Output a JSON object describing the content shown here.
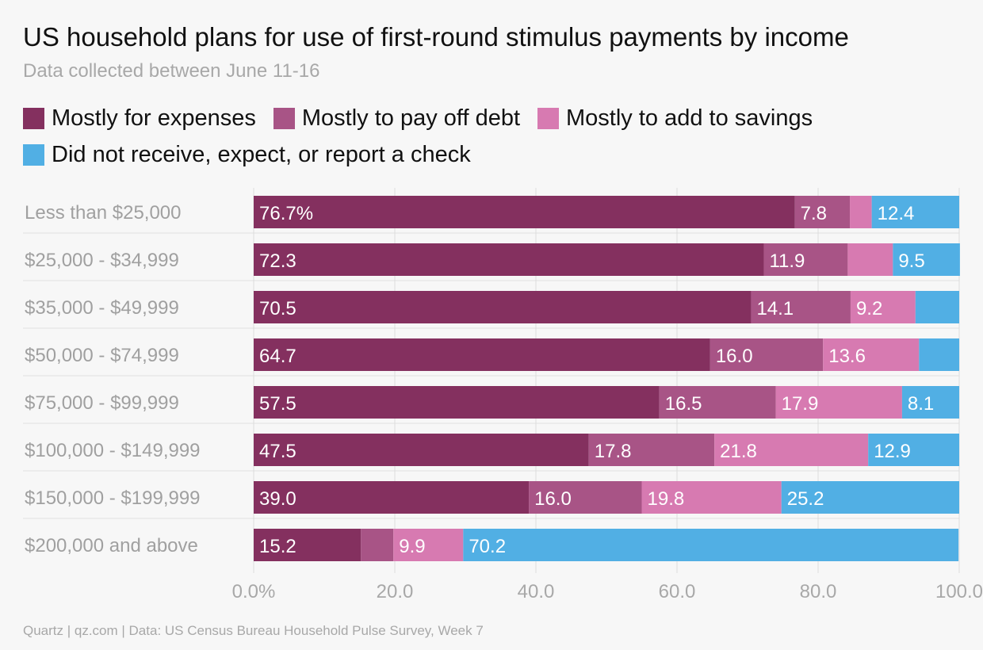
{
  "chart_data": {
    "type": "bar",
    "orientation": "horizontal",
    "stacked": true,
    "title": "US household plans for use of first-round stimulus payments by income",
    "subtitle": "Data collected between June 11-16",
    "source": "Quartz | qz.com | Data: US Census Bureau Household Pulse Survey, Week 7",
    "legend_placement": "top-left",
    "grid": true,
    "xlim": [
      0,
      100
    ],
    "x_ticks": [
      0,
      20,
      40,
      60,
      80,
      100
    ],
    "x_tick_labels": [
      "0.0%",
      "20.0",
      "40.0",
      "60.0",
      "80.0",
      "100.0"
    ],
    "categories": [
      "Less than $25,000",
      "$25,000 - $34,999",
      "$35,000 - $49,999",
      "$50,000 - $74,999",
      "$75,000 - $99,999",
      "$100,000 - $149,999",
      "$150,000 - $199,999",
      "$200,000 and above"
    ],
    "series": [
      {
        "name": "Mostly for expenses",
        "color": "#84305f",
        "values": [
          76.7,
          72.3,
          70.5,
          64.7,
          57.5,
          47.5,
          39.0,
          15.2
        ],
        "labels": [
          "76.7%",
          "72.3",
          "70.5",
          "64.7",
          "57.5",
          "47.5",
          "39.0",
          "15.2"
        ]
      },
      {
        "name": "Mostly to pay off debt",
        "color": "#a85486",
        "values": [
          7.8,
          11.9,
          14.1,
          16.0,
          16.5,
          17.8,
          16.0,
          4.6
        ],
        "labels": [
          "7.8",
          "11.9",
          "14.1",
          "16.0",
          "16.5",
          "17.8",
          "16.0",
          ""
        ]
      },
      {
        "name": "Mostly to add to savings",
        "color": "#d77ab1",
        "values": [
          3.1,
          6.4,
          9.2,
          13.6,
          17.9,
          21.8,
          19.8,
          9.9
        ],
        "labels": [
          "",
          "",
          "9.2",
          "13.6",
          "17.9",
          "21.8",
          "19.8",
          "9.9"
        ]
      },
      {
        "name": "Did not receive, expect, or report a check",
        "color": "#51afe4",
        "values": [
          12.4,
          9.5,
          6.2,
          5.7,
          8.1,
          12.9,
          25.2,
          70.2
        ],
        "labels": [
          "12.4",
          "9.5",
          "",
          "",
          "8.1",
          "12.9",
          "25.2",
          "70.2"
        ]
      }
    ]
  }
}
